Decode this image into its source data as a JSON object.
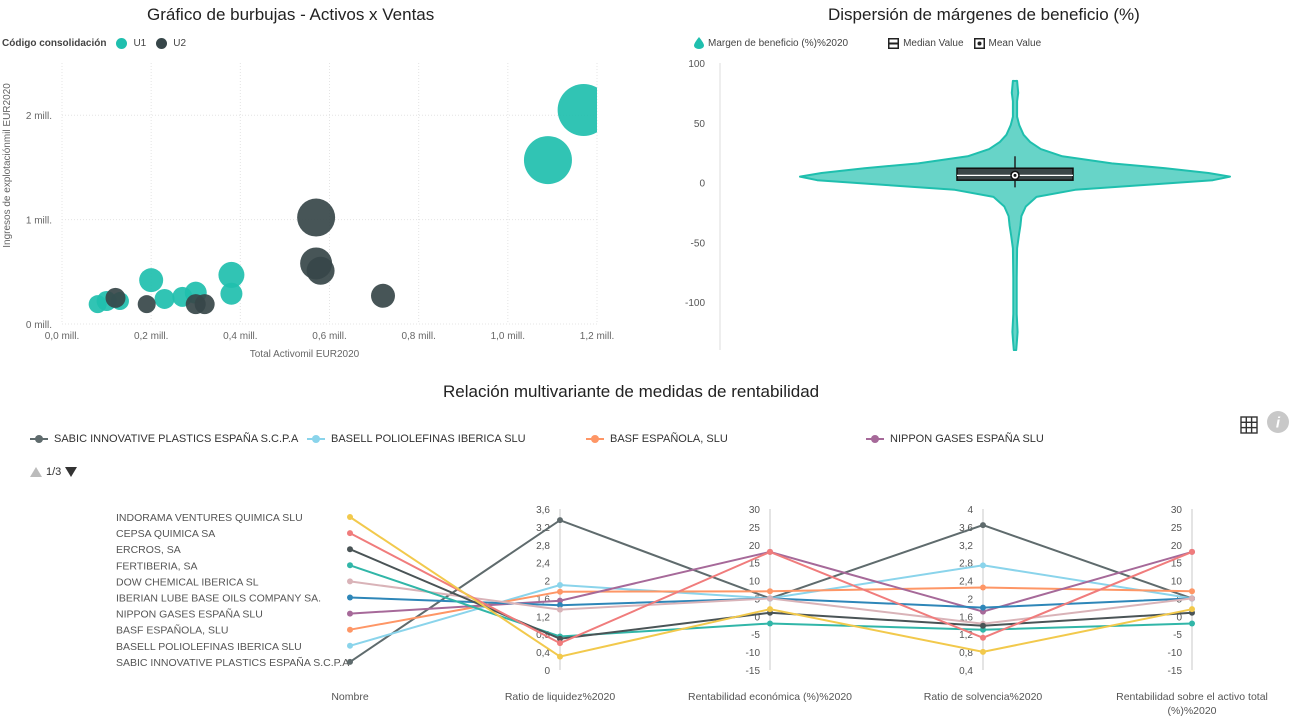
{
  "bubble": {
    "title": "Gráfico de burbujas - Activos x Ventas",
    "legend_title": "Código consolidación",
    "legend": [
      {
        "name": "U1",
        "color": "#1fbfae"
      },
      {
        "name": "U2",
        "color": "#374649"
      }
    ]
  },
  "violin": {
    "title": "Dispersión de márgenes de beneficio (%)",
    "legend": [
      {
        "name": "Margen de beneficio (%)%2020",
        "icon": "drop-icon"
      },
      {
        "name": "Median Value",
        "icon": "median-icon"
      },
      {
        "name": "Mean Value",
        "icon": "mean-icon"
      }
    ]
  },
  "parallel": {
    "title": "Relación multivariante de medidas de rentabilidad",
    "legend": [
      {
        "name": "SABIC INNOVATIVE PLASTICS ESPAÑA S.C.P.A",
        "color": "#5f6b6d"
      },
      {
        "name": "BASELL POLIOLEFINAS IBERICA SLU",
        "color": "#8ad4eb"
      },
      {
        "name": "BASF ESPAÑOLA, SLU",
        "color": "#fe9666"
      },
      {
        "name": "NIPPON GASES ESPAÑA SLU",
        "color": "#a66999"
      }
    ],
    "pager": "1/3",
    "grid_icon": "table-grid-icon",
    "info_icon": "info-icon"
  },
  "chart_data": [
    {
      "type": "scatter",
      "title": "Gráfico de burbujas - Activos x Ventas",
      "xlabel": "Total Activomil EUR2020",
      "ylabel": "Ingresos de explotaciónmil EUR2020",
      "xlim": [
        0,
        1.2
      ],
      "ylim": [
        0,
        2.5
      ],
      "x_ticks": [
        "0,0 mill.",
        "0,2 mill.",
        "0,4 mill.",
        "0,6 mill.",
        "0,8 mill.",
        "1,0 mill.",
        "1,2 mill."
      ],
      "y_ticks": [
        "0 mill.",
        "1 mill.",
        "2 mill."
      ],
      "grid": true,
      "legend_position": "top-left",
      "series": [
        {
          "name": "U1",
          "color": "#1fbfae",
          "points": [
            {
              "x": 1.17,
              "y": 2.05,
              "r": 26
            },
            {
              "x": 1.09,
              "y": 1.57,
              "r": 24
            },
            {
              "x": 0.38,
              "y": 0.47,
              "r": 13
            },
            {
              "x": 0.38,
              "y": 0.29,
              "r": 11
            },
            {
              "x": 0.2,
              "y": 0.42,
              "r": 12
            },
            {
              "x": 0.3,
              "y": 0.3,
              "r": 11
            },
            {
              "x": 0.23,
              "y": 0.24,
              "r": 10
            },
            {
              "x": 0.27,
              "y": 0.26,
              "r": 10
            },
            {
              "x": 0.1,
              "y": 0.22,
              "r": 10
            },
            {
              "x": 0.13,
              "y": 0.22,
              "r": 9
            },
            {
              "x": 0.08,
              "y": 0.19,
              "r": 9
            }
          ]
        },
        {
          "name": "U2",
          "color": "#374649",
          "points": [
            {
              "x": 0.57,
              "y": 1.02,
              "r": 19
            },
            {
              "x": 0.57,
              "y": 0.58,
              "r": 16
            },
            {
              "x": 0.58,
              "y": 0.51,
              "r": 14
            },
            {
              "x": 0.72,
              "y": 0.27,
              "r": 12
            },
            {
              "x": 0.12,
              "y": 0.25,
              "r": 10
            },
            {
              "x": 0.19,
              "y": 0.19,
              "r": 9
            },
            {
              "x": 0.3,
              "y": 0.19,
              "r": 10
            },
            {
              "x": 0.32,
              "y": 0.19,
              "r": 10
            }
          ]
        }
      ]
    },
    {
      "type": "violin",
      "title": "Dispersión de márgenes de beneficio (%)",
      "ylim": [
        -140,
        100
      ],
      "y_ticks": [
        100,
        50,
        0,
        -50,
        -100
      ],
      "density_color": "#1fbfae",
      "min": -140,
      "max": 85,
      "q1": 2,
      "median": 6,
      "mean": 6,
      "q3": 12,
      "whisker_low": -4,
      "whisker_high": 22,
      "profile": [
        {
          "y": 85,
          "w": 0.01
        },
        {
          "y": 75,
          "w": 0.015
        },
        {
          "y": 68,
          "w": 0.01
        },
        {
          "y": 55,
          "w": 0.01
        },
        {
          "y": 48,
          "w": 0.02
        },
        {
          "y": 40,
          "w": 0.04
        },
        {
          "y": 34,
          "w": 0.07
        },
        {
          "y": 28,
          "w": 0.12
        },
        {
          "y": 22,
          "w": 0.22
        },
        {
          "y": 16,
          "w": 0.45
        },
        {
          "y": 12,
          "w": 0.7
        },
        {
          "y": 8,
          "w": 0.9
        },
        {
          "y": 5,
          "w": 1.0
        },
        {
          "y": 2,
          "w": 0.92
        },
        {
          "y": -2,
          "w": 0.6
        },
        {
          "y": -6,
          "w": 0.28
        },
        {
          "y": -12,
          "w": 0.1
        },
        {
          "y": -20,
          "w": 0.05
        },
        {
          "y": -28,
          "w": 0.03
        },
        {
          "y": -36,
          "w": 0.025
        },
        {
          "y": -44,
          "w": 0.018
        },
        {
          "y": -55,
          "w": 0.01
        },
        {
          "y": -80,
          "w": 0.008
        },
        {
          "y": -110,
          "w": 0.008
        },
        {
          "y": -125,
          "w": 0.012
        },
        {
          "y": -135,
          "w": 0.008
        },
        {
          "y": -140,
          "w": 0.004
        }
      ]
    },
    {
      "type": "parallel",
      "title": "Relación multivariante de medidas de rentabilidad",
      "axes": [
        {
          "name": "Nombre",
          "type": "category"
        },
        {
          "name": "Ratio de liquidez%2020",
          "range": [
            0,
            3.6
          ],
          "ticks": [
            "3,6",
            "3,2",
            "2,8",
            "2,4",
            "2",
            "1,6",
            "1,2",
            "0,8",
            "0,4",
            "0"
          ]
        },
        {
          "name": "Rentabilidad económica (%)%2020",
          "range": [
            -15,
            30
          ],
          "ticks": [
            "30",
            "25",
            "20",
            "15",
            "10",
            "5",
            "0",
            "-5",
            "-10",
            "-15"
          ]
        },
        {
          "name": "Ratio de solvencia%2020",
          "range": [
            0,
            4
          ],
          "ticks": [
            "4",
            "3,6",
            "3,2",
            "2,8",
            "2,4",
            "2",
            "1,6",
            "1,2",
            "0,8",
            "0,4"
          ]
        },
        {
          "name": "Rentabilidad sobre el activo total (%)%2020",
          "range": [
            -15,
            30
          ],
          "ticks": [
            "30",
            "25",
            "20",
            "15",
            "10",
            "5",
            "0",
            "-5",
            "-10",
            "-15"
          ]
        }
      ],
      "companies": [
        "INDORAMA VENTURES QUIMICA SLU",
        "CEPSA QUIMICA SA",
        "ERCROS, SA",
        "FERTIBERIA, SA",
        "DOW CHEMICAL IBERICA SL",
        "IBERIAN LUBE BASE OILS COMPANY SA.",
        "NIPPON GASES ESPAÑA SLU",
        "BASF ESPAÑOLA, SLU",
        "BASELL POLIOLEFINAS IBERICA SLU",
        "SABIC INNOVATIVE PLASTICS ESPAÑA S.C.P.A"
      ],
      "series": [
        {
          "company": "SABIC INNOVATIVE PLASTICS ESPAÑA S.C.P.A",
          "color": "#5f6b6d",
          "values": [
            3.35,
            5,
            3.6,
            5
          ]
        },
        {
          "company": "BASELL POLIOLEFINAS IBERICA SLU",
          "color": "#8ad4eb",
          "values": [
            1.9,
            5,
            2.6,
            5
          ]
        },
        {
          "company": "BASF ESPAÑOLA, SLU",
          "color": "#fe9666",
          "values": [
            1.75,
            7,
            2.05,
            7
          ]
        },
        {
          "company": "NIPPON GASES ESPAÑA SLU",
          "color": "#a66999",
          "values": [
            1.55,
            18,
            1.45,
            18
          ]
        },
        {
          "company": "IBERIAN LUBE BASE OILS COMPANY SA.",
          "color": "#2e86b8",
          "values": [
            1.45,
            5,
            1.55,
            5
          ]
        },
        {
          "company": "DOW CHEMICAL IBERICA SL",
          "color": "#d9b3b8",
          "values": [
            1.35,
            5,
            1.15,
            5
          ]
        },
        {
          "company": "FERTIBERIA, SA",
          "color": "#31b6a8",
          "values": [
            0.75,
            -2,
            1.0,
            -2
          ]
        },
        {
          "company": "ERCROS, SA",
          "color": "#4a5456",
          "values": [
            0.7,
            1,
            1.1,
            1
          ]
        },
        {
          "company": "CEPSA QUIMICA SA",
          "color": "#f07c7c",
          "values": [
            0.6,
            18,
            0.8,
            18
          ]
        },
        {
          "company": "INDORAMA VENTURES QUIMICA SLU",
          "color": "#f2c94c",
          "values": [
            0.3,
            2,
            0.45,
            2
          ]
        }
      ]
    }
  ]
}
